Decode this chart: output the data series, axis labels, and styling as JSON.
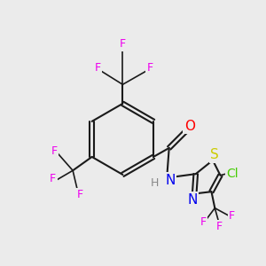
{
  "bg_color": "#ebebeb",
  "bond_color": "#1a1a1a",
  "atom_colors": {
    "F": "#ee00ee",
    "O": "#ff0000",
    "N": "#0000ee",
    "S": "#cccc00",
    "Cl": "#44cc00",
    "H": "#888888",
    "C": "#1a1a1a"
  },
  "font_size_atom": 10,
  "font_size_F": 9
}
